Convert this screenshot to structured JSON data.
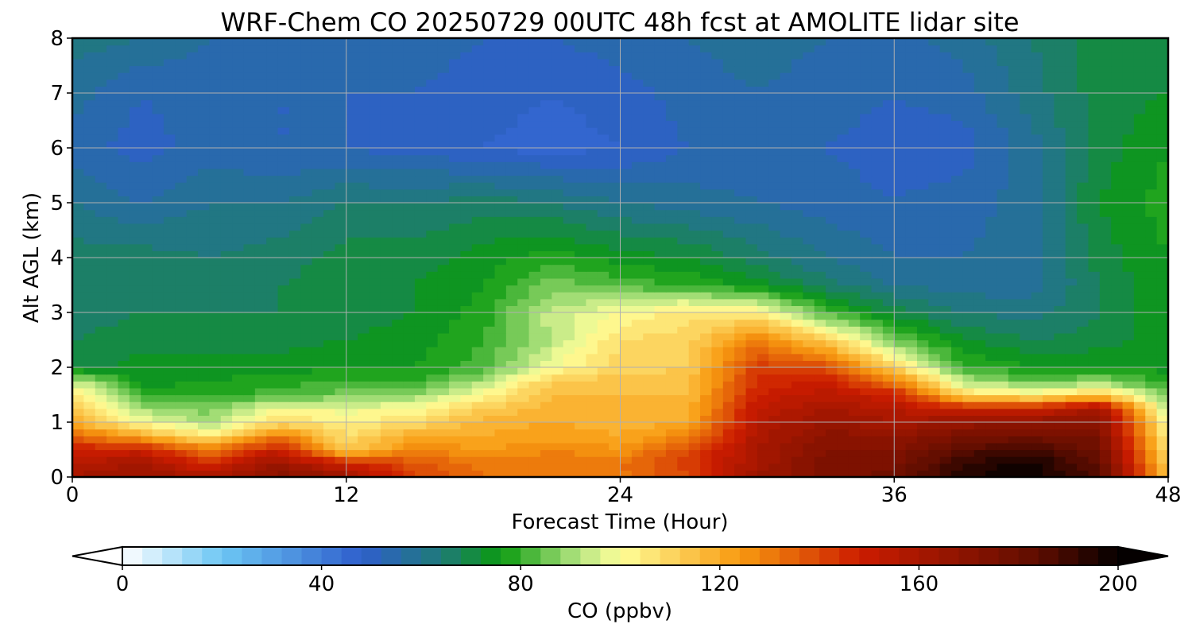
{
  "chart_data": {
    "type": "heatmap",
    "title": "WRF-Chem CO  20250729 00UTC 48h fcst at AMOLITE lidar site",
    "xlabel": "Forecast Time (Hour)",
    "ylabel": "Alt AGL (km)",
    "xlim": [
      0,
      48
    ],
    "ylim": [
      0,
      8
    ],
    "x_ticks": [
      "0",
      "12",
      "24",
      "36",
      "48"
    ],
    "y_ticks": [
      "0",
      "1",
      "2",
      "3",
      "4",
      "5",
      "6",
      "7",
      "8"
    ],
    "grid": true,
    "colorbar": {
      "label": "CO  (ppbv)",
      "range": [
        0,
        200
      ],
      "extend": "both",
      "ticks": [
        "0",
        "40",
        "80",
        "120",
        "160",
        "200"
      ],
      "levels_step": 4,
      "color_stops": [
        {
          "v": 0,
          "c": "#ffffff"
        },
        {
          "v": 20,
          "c": "#6cc6f4"
        },
        {
          "v": 48,
          "c": "#2f5fcc"
        },
        {
          "v": 64,
          "c": "#1f7a78"
        },
        {
          "v": 76,
          "c": "#0a9a10"
        },
        {
          "v": 92,
          "c": "#b8e683"
        },
        {
          "v": 100,
          "c": "#ffff99"
        },
        {
          "v": 124,
          "c": "#f89a10"
        },
        {
          "v": 148,
          "c": "#cc1c00"
        },
        {
          "v": 184,
          "c": "#5e0d00"
        },
        {
          "v": 200,
          "c": "#050000"
        }
      ]
    },
    "x_hours": [
      0,
      3,
      6,
      9,
      12,
      15,
      18,
      21,
      24,
      27,
      30,
      33,
      36,
      39,
      42,
      45,
      48
    ],
    "y_km": [
      0,
      0.25,
      0.5,
      0.75,
      1,
      1.25,
      1.5,
      1.75,
      2,
      2.5,
      3,
      3.5,
      4,
      5,
      6,
      7,
      8
    ],
    "co_ppbv": [
      [
        160,
        165,
        160,
        170,
        165,
        140,
        132,
        128,
        130,
        140,
        165,
        172,
        178,
        195,
        200,
        185,
        112
      ],
      [
        156,
        160,
        145,
        165,
        148,
        138,
        130,
        130,
        132,
        142,
        160,
        175,
        175,
        192,
        198,
        182,
        110
      ],
      [
        148,
        150,
        130,
        150,
        112,
        128,
        124,
        128,
        125,
        140,
        160,
        172,
        172,
        185,
        190,
        178,
        106
      ],
      [
        135,
        120,
        105,
        130,
        108,
        120,
        120,
        122,
        120,
        128,
        158,
        170,
        168,
        176,
        178,
        175,
        102
      ],
      [
        120,
        100,
        90,
        108,
        104,
        108,
        118,
        120,
        118,
        120,
        155,
        165,
        160,
        165,
        168,
        170,
        98
      ],
      [
        112,
        90,
        86,
        100,
        98,
        100,
        112,
        118,
        118,
        118,
        152,
        160,
        155,
        150,
        148,
        162,
        92
      ],
      [
        106,
        80,
        78,
        82,
        86,
        88,
        102,
        116,
        116,
        116,
        148,
        155,
        148,
        110,
        104,
        112,
        84
      ],
      [
        95,
        74,
        76,
        78,
        80,
        80,
        90,
        112,
        114,
        114,
        145,
        148,
        130,
        92,
        84,
        88,
        78
      ],
      [
        70,
        74,
        74,
        74,
        76,
        76,
        82,
        100,
        110,
        112,
        142,
        140,
        110,
        80,
        76,
        76,
        74
      ],
      [
        68,
        70,
        70,
        70,
        72,
        74,
        80,
        92,
        108,
        110,
        130,
        112,
        86,
        72,
        68,
        70,
        74
      ],
      [
        66,
        68,
        68,
        68,
        70,
        72,
        78,
        94,
        100,
        106,
        104,
        82,
        70,
        64,
        62,
        68,
        76
      ],
      [
        66,
        68,
        66,
        68,
        70,
        72,
        76,
        86,
        82,
        80,
        74,
        66,
        60,
        58,
        58,
        68,
        76
      ],
      [
        66,
        66,
        64,
        66,
        70,
        70,
        74,
        78,
        74,
        72,
        66,
        60,
        56,
        56,
        58,
        70,
        76
      ],
      [
        60,
        56,
        60,
        60,
        64,
        64,
        66,
        64,
        60,
        58,
        56,
        54,
        52,
        54,
        58,
        72,
        78
      ],
      [
        54,
        50,
        54,
        52,
        52,
        50,
        48,
        46,
        48,
        52,
        54,
        52,
        50,
        50,
        58,
        70,
        76
      ],
      [
        58,
        52,
        54,
        52,
        52,
        52,
        50,
        48,
        50,
        54,
        56,
        54,
        52,
        54,
        62,
        70,
        72
      ],
      [
        62,
        60,
        56,
        54,
        54,
        54,
        52,
        52,
        54,
        56,
        58,
        56,
        54,
        58,
        64,
        70,
        70
      ]
    ]
  }
}
